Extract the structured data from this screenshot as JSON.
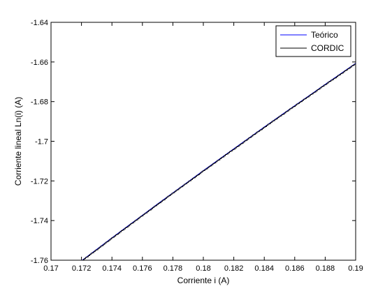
{
  "chart_data": {
    "type": "line",
    "title": "",
    "xlabel": "Corriente i (A)",
    "ylabel": "Corriente lineal Ln(i) (A)",
    "xlim": [
      0.17,
      0.19
    ],
    "ylim": [
      -1.76,
      -1.64
    ],
    "x_ticks": [
      0.17,
      0.172,
      0.174,
      0.176,
      0.178,
      0.18,
      0.182,
      0.184,
      0.186,
      0.188,
      0.19
    ],
    "x_tick_labels": [
      "0.17",
      "0.172",
      "0.174",
      "0.176",
      "0.178",
      "0.18",
      "0.182",
      "0.184",
      "0.186",
      "0.188",
      "0.19"
    ],
    "y_ticks": [
      -1.76,
      -1.74,
      -1.72,
      -1.7,
      -1.68,
      -1.66,
      -1.64
    ],
    "y_tick_labels": [
      "-1.76",
      "-1.74",
      "-1.72",
      "-1.7",
      "-1.68",
      "-1.66",
      "-1.64"
    ],
    "grid": false,
    "legend_position": "top-right",
    "series": [
      {
        "name": "Teórico",
        "color": "#0000ff",
        "x": [
          0.172,
          0.173,
          0.174,
          0.175,
          0.176,
          0.177,
          0.178,
          0.179,
          0.18,
          0.181,
          0.182,
          0.183,
          0.184,
          0.185,
          0.186,
          0.187,
          0.188,
          0.189,
          0.19
        ],
        "y": [
          -1.7603,
          -1.7545,
          -1.7487,
          -1.743,
          -1.7373,
          -1.7316,
          -1.726,
          -1.7204,
          -1.7148,
          -1.7093,
          -1.7038,
          -1.6983,
          -1.6928,
          -1.6874,
          -1.682,
          -1.6767,
          -1.6713,
          -1.666,
          -1.6607
        ]
      },
      {
        "name": "CORDIC",
        "color": "#000000",
        "step": 0.0003,
        "x": [
          0.172,
          0.173,
          0.174,
          0.175,
          0.176,
          0.177,
          0.178,
          0.179,
          0.18,
          0.181,
          0.182,
          0.183,
          0.184,
          0.185,
          0.186,
          0.187,
          0.188,
          0.189,
          0.19
        ],
        "y": [
          -1.7603,
          -1.7545,
          -1.7487,
          -1.743,
          -1.7373,
          -1.7316,
          -1.726,
          -1.7204,
          -1.7148,
          -1.7093,
          -1.7038,
          -1.6983,
          -1.6928,
          -1.6874,
          -1.682,
          -1.6767,
          -1.6713,
          -1.666,
          -1.6607
        ]
      }
    ]
  }
}
